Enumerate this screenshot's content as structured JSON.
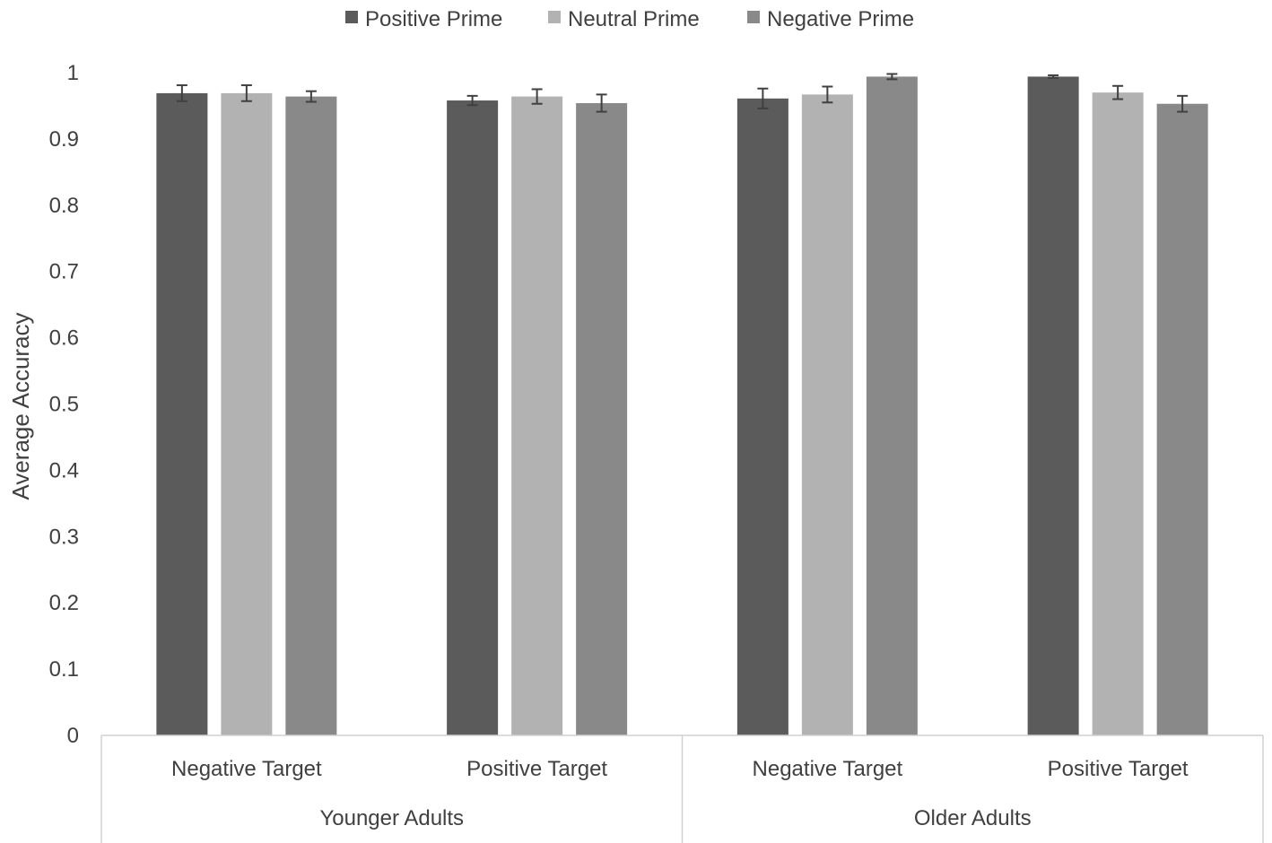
{
  "chart_data": {
    "type": "bar",
    "title": "",
    "xlabel": "",
    "ylabel": "Average Accuracy",
    "ylim": [
      0,
      1
    ],
    "yticks": [
      0,
      0.1,
      0.2,
      0.3,
      0.4,
      0.5,
      0.6,
      0.7,
      0.8,
      0.9,
      1
    ],
    "grid": false,
    "legend_position": "top",
    "groups": [
      {
        "label": "Younger Adults",
        "categories": [
          "Negative Target",
          "Positive Target"
        ]
      },
      {
        "label": "Older Adults",
        "categories": [
          "Negative Target",
          "Positive Target"
        ]
      }
    ],
    "categories": [
      "Negative Target",
      "Positive Target",
      "Negative Target",
      "Positive Target"
    ],
    "series": [
      {
        "name": "Positive Prime",
        "color": "#5b5b5b",
        "values": [
          0.969,
          0.958,
          0.961,
          0.994
        ],
        "errors": [
          0.012,
          0.007,
          0.015,
          0.002
        ]
      },
      {
        "name": "Neutral Prime",
        "color": "#b2b2b2",
        "values": [
          0.969,
          0.964,
          0.967,
          0.97
        ],
        "errors": [
          0.012,
          0.011,
          0.012,
          0.01
        ]
      },
      {
        "name": "Negative Prime",
        "color": "#898989",
        "values": [
          0.964,
          0.954,
          0.994,
          0.953
        ],
        "errors": [
          0.008,
          0.013,
          0.004,
          0.012
        ]
      }
    ]
  }
}
